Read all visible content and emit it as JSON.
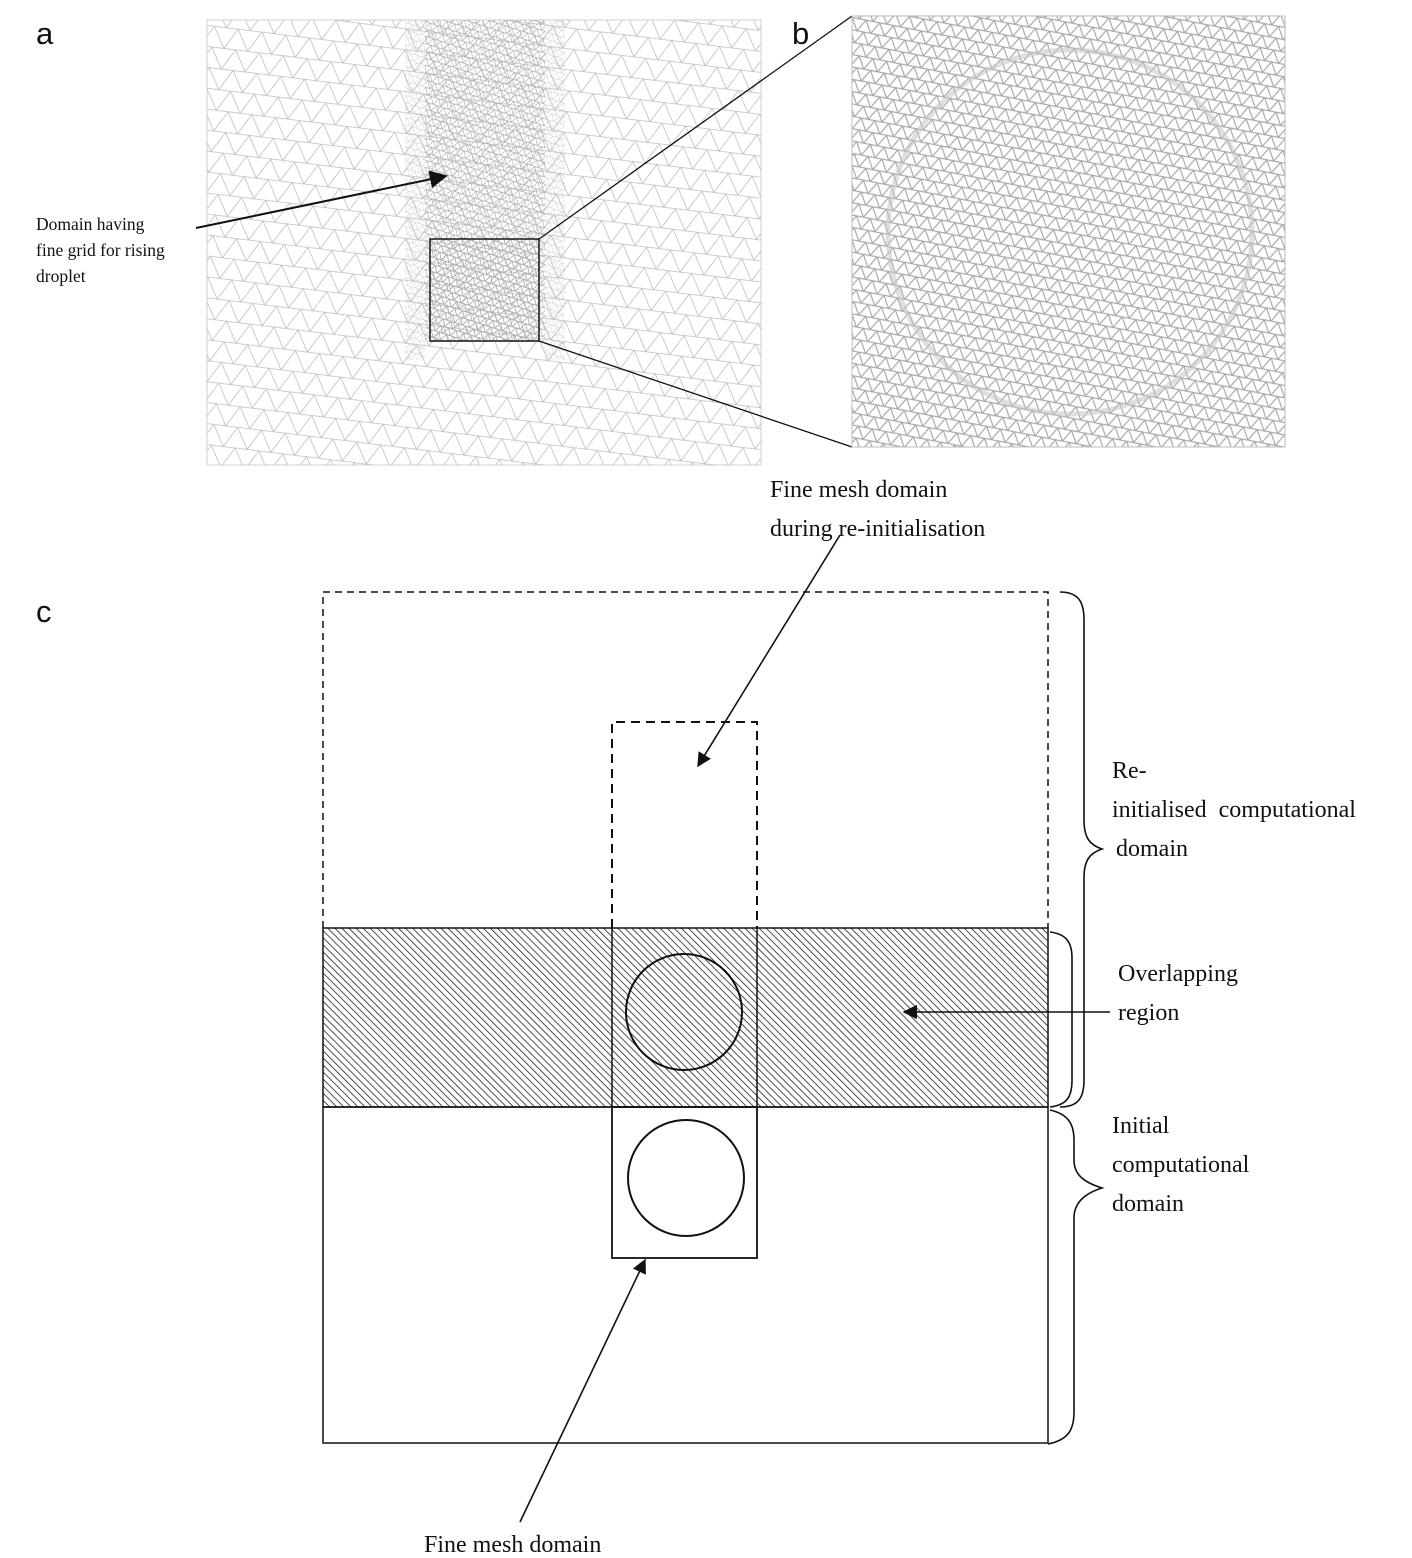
{
  "panels": {
    "a": "a",
    "b": "b",
    "c": "c"
  },
  "panel_a": {
    "annotation_lines": [
      "Domain having",
      "fine grid for rising",
      "droplet"
    ]
  },
  "panel_c": {
    "reinit_fine_mesh_label": [
      "Fine mesh domain",
      "during re-initialisation"
    ],
    "reinit_domain_label": [
      "Re-",
      "initialised  computational",
      "domain"
    ],
    "overlap_label": [
      "Overlapping",
      "region"
    ],
    "initial_domain_label": [
      "Initial",
      "computational",
      "domain"
    ],
    "fine_mesh_label": "Fine mesh domain"
  },
  "colors": {
    "ink": "#111111",
    "mesh_line": "#b8b8b8",
    "mesh_frame": "#cfcfcf"
  }
}
